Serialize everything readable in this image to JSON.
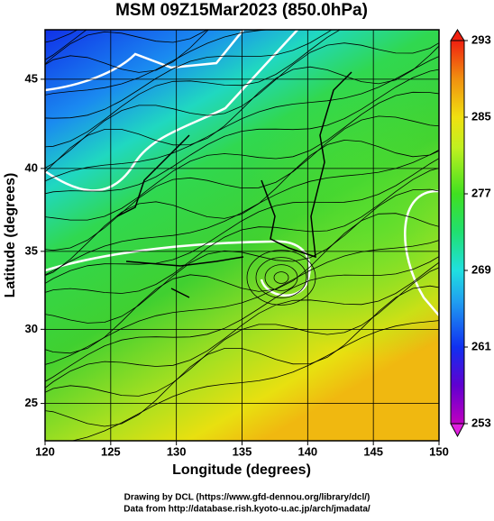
{
  "chart_data": {
    "type": "map",
    "title": "MSM 09Z15Mar2023 (850.0hPa)",
    "x_label": "Longitude (degrees)",
    "y_label": "Latitude  (degrees)",
    "projection": "mercator",
    "xlim": [
      120,
      150
    ],
    "xticks": [
      120,
      125,
      130,
      135,
      140,
      145,
      150
    ],
    "ylim": [
      22.4,
      47.6
    ],
    "yticks": [
      25,
      30,
      35,
      40,
      45
    ],
    "grid": true,
    "colorbar": {
      "lim": [
        253,
        293
      ],
      "ticks": [
        253,
        261,
        269,
        277,
        285,
        293
      ]
    },
    "credits": [
      "Drawing by DCL (https://www.gfd-dennou.org/library/dcl/)",
      "Data from http://database.rish.kyoto-u.ac.jp/arch/jmadata/"
    ]
  }
}
